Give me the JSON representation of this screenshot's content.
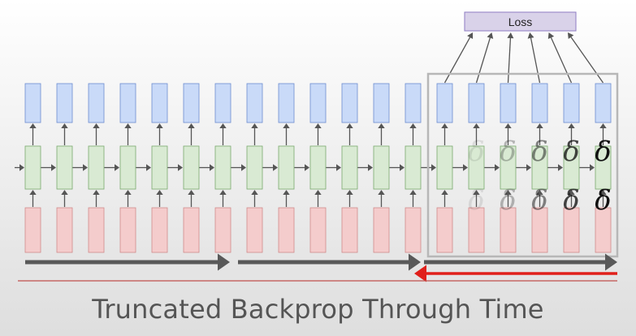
{
  "diagram": {
    "title": "Truncated Backprop Through Time",
    "loss_label": "Loss",
    "timestep_count": 19,
    "truncation_window_size": 6,
    "delta_symbol": "δ",
    "forward_arrow_count": 3,
    "backward_arrow_count": 1,
    "colors": {
      "output_fill": "#c9daf8",
      "output_stroke": "#6d8ccf",
      "hidden_fill": "#d9ead3",
      "hidden_stroke": "#7aa86f",
      "input_fill": "#f4cccc",
      "input_stroke": "#d08a8a",
      "loss_fill": "#d9d2e9",
      "loss_stroke": "#8e7cc3",
      "connector": "#555555",
      "window_border": "#b7b7b7",
      "forward_arrow": "#595959",
      "backward_arrow": "#e0201b",
      "divider": "#c0504d",
      "title": "#555555"
    }
  }
}
